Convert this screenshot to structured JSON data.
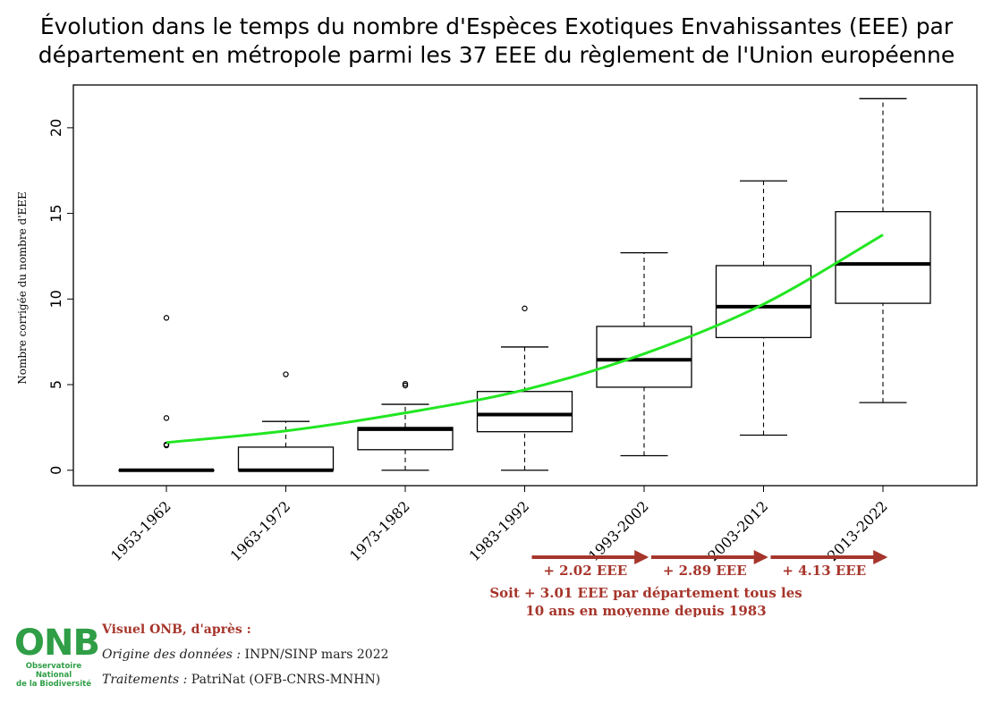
{
  "title_lines": [
    "Évolution dans le temps du nombre d'Espèces Exotiques Envahissantes (EEE) par",
    "département en métropole parmi les 37 EEE du règlement de l'Union européenne"
  ],
  "colors": {
    "trend": "#22e622",
    "annotation": "#a6352b",
    "logo": "#2f9e46"
  },
  "chart_data": {
    "type": "boxplot",
    "ylabel": "Nombre corrigée du nombre d'EEE",
    "ylim": [
      -0.9,
      22.5
    ],
    "yticks": [
      0,
      5,
      10,
      15,
      20
    ],
    "categories": [
      "1953-1962",
      "1963-1972",
      "1973-1982",
      "1983-1992",
      "1993-2002",
      "2003-2012",
      "2013-2022"
    ],
    "boxes": [
      {
        "whisker_low": 0,
        "q1": 0,
        "median": 0,
        "q3": 0,
        "whisker_high": 0,
        "outliers": [
          1.45,
          1.5,
          3.05,
          8.9
        ]
      },
      {
        "whisker_low": 0,
        "q1": 0,
        "median": 0,
        "q3": 1.35,
        "whisker_high": 2.85,
        "outliers": [
          5.6
        ]
      },
      {
        "whisker_low": 0,
        "q1": 1.2,
        "median": 2.4,
        "q3": 2.5,
        "whisker_high": 3.85,
        "outliers": [
          4.95,
          5.05
        ]
      },
      {
        "whisker_low": 0,
        "q1": 2.25,
        "median": 3.25,
        "q3": 4.6,
        "whisker_high": 7.2,
        "outliers": [
          9.45
        ]
      },
      {
        "whisker_low": 0.85,
        "q1": 4.85,
        "median": 6.45,
        "q3": 8.4,
        "whisker_high": 12.7,
        "outliers": []
      },
      {
        "whisker_low": 2.05,
        "q1": 7.75,
        "median": 9.55,
        "q3": 11.95,
        "whisker_high": 16.9,
        "outliers": []
      },
      {
        "whisker_low": 3.95,
        "q1": 9.75,
        "median": 12.05,
        "q3": 15.1,
        "whisker_high": 21.7,
        "outliers": []
      }
    ],
    "trend": {
      "x": [
        0,
        1,
        2,
        3,
        4,
        5,
        6
      ],
      "y": [
        1.62,
        2.3,
        3.35,
        4.7,
        6.8,
        9.7,
        13.75
      ]
    },
    "increments": [
      {
        "from": "1983-1992",
        "to": "1993-2002",
        "label": "+ 2.02 EEE"
      },
      {
        "from": "1993-2002",
        "to": "2003-2012",
        "label": "+ 2.89 EEE"
      },
      {
        "from": "2003-2012",
        "to": "2013-2022",
        "label": "+ 4.13 EEE"
      }
    ],
    "summary_lines": [
      "Soit + 3.01 EEE par département tous les",
      "10 ans en moyenne depuis 1983"
    ]
  },
  "footer": {
    "logo_text": "ONB",
    "logo_sub_1": "Observatoire National",
    "logo_sub_2": "de la Biodiversité",
    "visual_credit": "Visuel ONB, d'après :",
    "data_label": "Origine des données :",
    "data_value": " INPN/SINP mars 2022",
    "processing_label": "Traitements :",
    "processing_value": " PatriNat (OFB-CNRS-MNHN)"
  }
}
